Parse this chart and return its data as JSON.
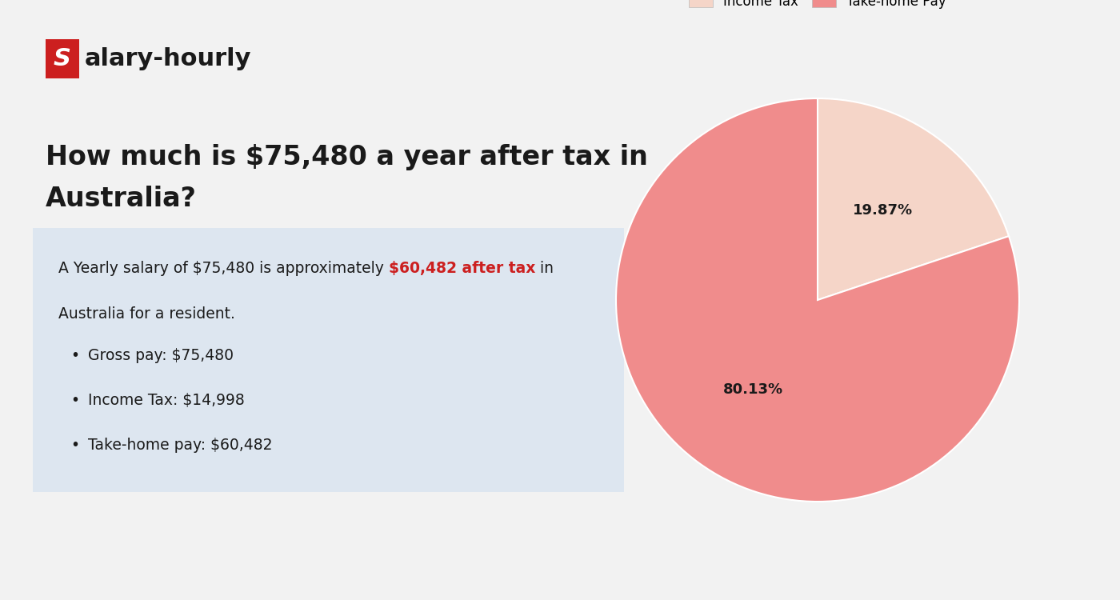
{
  "background_color": "#f2f2f2",
  "logo_s_bg": "#cc1f1f",
  "logo_s_color": "#ffffff",
  "logo_text_color": "#1a1a1a",
  "heading_line1": "How much is $75,480 a year after tax in",
  "heading_line2": "Australia?",
  "heading_color": "#1a1a1a",
  "heading_fontsize": 24,
  "box_bg": "#dde6f0",
  "box_text_normal1": "A Yearly salary of $75,480 is approximately ",
  "box_text_highlight": "$60,482 after tax",
  "box_text_normal2": " in",
  "box_text_line2": "Australia for a resident.",
  "box_highlight_color": "#cc1f1f",
  "box_text_color": "#1a1a1a",
  "bullet_items": [
    "Gross pay: $75,480",
    "Income Tax: $14,998",
    "Take-home pay: $60,482"
  ],
  "pie_values": [
    19.87,
    80.13
  ],
  "pie_labels": [
    "Income Tax",
    "Take-home Pay"
  ],
  "pie_colors": [
    "#f5d5c8",
    "#f08c8c"
  ],
  "pie_label_small": "19.87%",
  "pie_label_large": "80.13%",
  "pie_text_color": "#1a1a1a",
  "pie_fontsize": 13,
  "legend_fontsize": 12
}
